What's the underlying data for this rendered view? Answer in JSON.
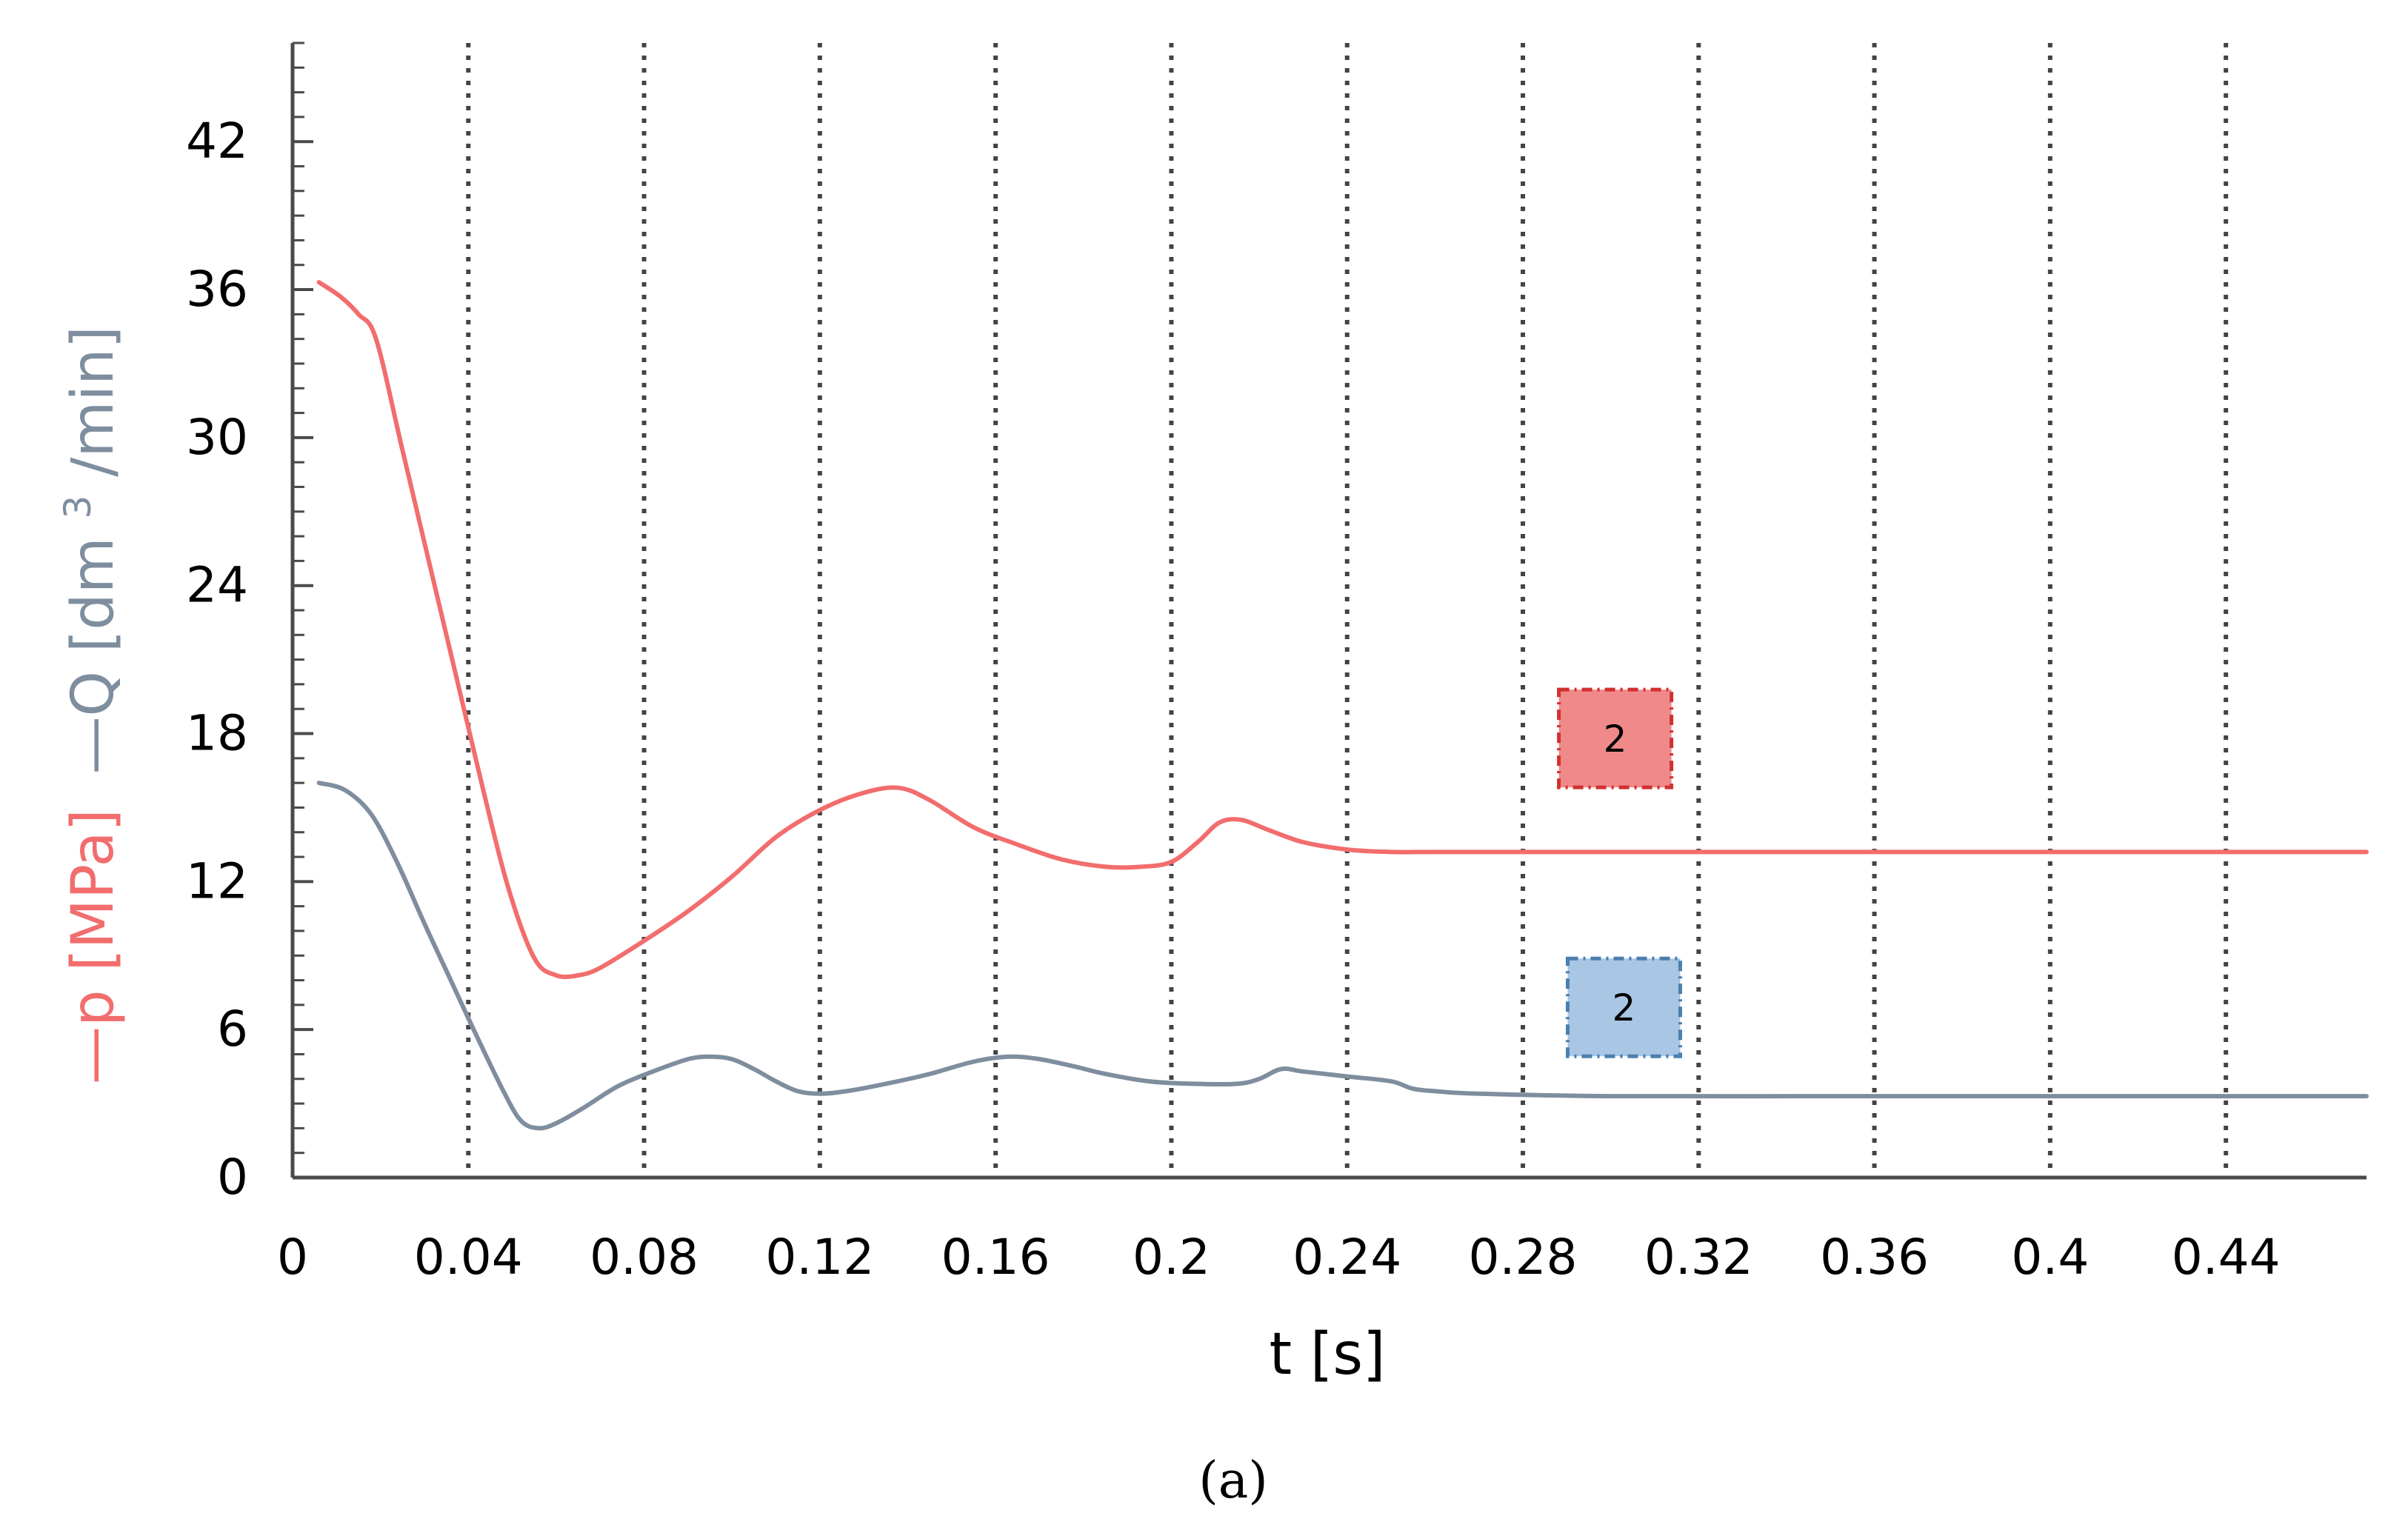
{
  "chart_data": {
    "type": "line",
    "xlabel": "t [s]",
    "ylabel_parts": [
      "—p [MPa]",
      "—Q [dm",
      "3",
      "/min]"
    ],
    "caption": "(a)",
    "xlim": [
      0,
      0.472
    ],
    "ylim": [
      0,
      46
    ],
    "x_ticks": [
      0,
      0.04,
      0.08,
      0.12,
      0.16,
      0.2,
      0.24,
      0.28,
      0.32,
      0.36,
      0.4,
      0.44
    ],
    "x_tick_labels": [
      "0",
      "0.04",
      "0.08",
      "0.12",
      "0.16",
      "0.2",
      "0.24",
      "0.28",
      "0.32",
      "0.36",
      "0.4",
      "0.44"
    ],
    "y_ticks": [
      0,
      6,
      12,
      18,
      24,
      30,
      36,
      42
    ],
    "y_tick_labels": [
      "0",
      "6",
      "12",
      "18",
      "24",
      "30",
      "36",
      "42"
    ],
    "y_minor_step": 1,
    "grid": "vertical dotted lines at each x tick",
    "colors": {
      "p": "#f26d6d",
      "Q": "#7f8e9e",
      "axes": "#4a4a4a",
      "grid": "#444444",
      "label_red_fill": "#f08a8a",
      "label_red_border": "#d23030",
      "label_blue_fill": "#a9c6e4",
      "label_blue_border": "#4a7fb0",
      "ylabel_p": "#f26d6d",
      "ylabel_Q": "#7f8e9e"
    },
    "series": [
      {
        "key": "p",
        "x": [
          0.006,
          0.011,
          0.015,
          0.019,
          0.025,
          0.031,
          0.037,
          0.043,
          0.049,
          0.055,
          0.06,
          0.065,
          0.07,
          0.08,
          0.09,
          0.1,
          0.11,
          0.12,
          0.13,
          0.138,
          0.145,
          0.155,
          0.165,
          0.175,
          0.185,
          0.193,
          0.2,
          0.206,
          0.211,
          0.216,
          0.222,
          0.23,
          0.24,
          0.25,
          0.26,
          0.3,
          0.35,
          0.4,
          0.472
        ],
        "y": [
          36.3,
          35.7,
          35.0,
          34.0,
          29.5,
          25.0,
          20.5,
          16.0,
          11.8,
          8.9,
          8.2,
          8.2,
          8.5,
          9.6,
          10.8,
          12.2,
          13.8,
          14.9,
          15.6,
          15.8,
          15.3,
          14.2,
          13.5,
          12.9,
          12.6,
          12.6,
          12.8,
          13.6,
          14.4,
          14.5,
          14.1,
          13.6,
          13.3,
          13.2,
          13.2,
          13.2,
          13.2,
          13.2,
          13.2
        ]
      },
      {
        "key": "Q",
        "x": [
          0.006,
          0.012,
          0.018,
          0.024,
          0.03,
          0.036,
          0.042,
          0.048,
          0.052,
          0.056,
          0.06,
          0.066,
          0.074,
          0.082,
          0.09,
          0.095,
          0.1,
          0.105,
          0.11,
          0.115,
          0.12,
          0.126,
          0.135,
          0.145,
          0.155,
          0.163,
          0.17,
          0.178,
          0.185,
          0.195,
          0.205,
          0.215,
          0.22,
          0.225,
          0.23,
          0.24,
          0.25,
          0.255,
          0.26,
          0.27,
          0.3,
          0.35,
          0.4,
          0.472
        ],
        "y": [
          16.0,
          15.7,
          14.7,
          12.7,
          10.3,
          8.0,
          5.7,
          3.5,
          2.3,
          2.0,
          2.2,
          2.8,
          3.7,
          4.3,
          4.8,
          4.9,
          4.8,
          4.4,
          3.9,
          3.5,
          3.4,
          3.5,
          3.8,
          4.2,
          4.7,
          4.9,
          4.8,
          4.5,
          4.2,
          3.9,
          3.8,
          3.8,
          4.0,
          4.4,
          4.3,
          4.1,
          3.9,
          3.6,
          3.5,
          3.4,
          3.3,
          3.3,
          3.3,
          3.3
        ]
      }
    ],
    "labels": [
      {
        "text": "2",
        "series": "p",
        "x": 0.301,
        "y": 17.8
      },
      {
        "text": "2",
        "series": "Q",
        "x": 0.303,
        "y": 6.9
      }
    ]
  }
}
